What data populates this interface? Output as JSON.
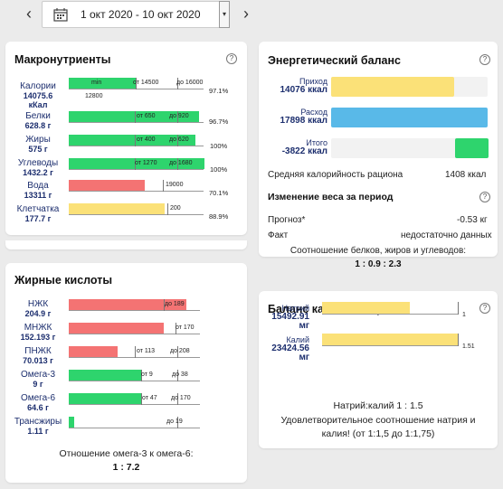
{
  "toolbar": {
    "prev_label": "‹",
    "next_label": "›",
    "date_range": "1 окт 2020 - 10 окт 2020",
    "dropdown_label": "▾"
  },
  "macro": {
    "title": "Макронутриенты",
    "rows": [
      {
        "name": "Калории",
        "value": "14075.6",
        "value2": "кКал",
        "min": "min",
        "from": "от 14500",
        "to": "до 16000",
        "pct": "97.1%",
        "below": "12800"
      },
      {
        "name": "Белки",
        "value": "628.8 г",
        "from": "от 650",
        "to": "до 920",
        "pct": "96.7%"
      },
      {
        "name": "Жиры",
        "value": "575 г",
        "from": "от 400",
        "to": "до 620",
        "pct": "100%"
      },
      {
        "name": "Углеводы",
        "value": "1432.2 г",
        "from": "от 1270",
        "to": "до 1680",
        "pct": "100%"
      },
      {
        "name": "Вода",
        "value": "13311 г",
        "to": "19000",
        "pct": "70.1%"
      },
      {
        "name": "Клетчатка",
        "value": "177.7 г",
        "to": "200",
        "pct": "88.9%"
      }
    ]
  },
  "fat": {
    "title": "Жирные кислоты",
    "rows": [
      {
        "name": "НЖК",
        "value": "204.9 г",
        "to": "до 189"
      },
      {
        "name": "МНЖК",
        "value": "152.193 г",
        "to": "от 170"
      },
      {
        "name": "ПНЖК",
        "value": "70.013 г",
        "from": "от 113",
        "to": "до 208"
      },
      {
        "name": "Омега-3",
        "value": "9 г",
        "from": "от 9",
        "to": "до 38"
      },
      {
        "name": "Омега-6",
        "value": "64.6 г",
        "from": "от 47",
        "to": "до 170"
      },
      {
        "name": "Трансжиры",
        "value": "1.11 г",
        "to": "до 19"
      }
    ],
    "ratio_label": "Отношение омега-3 к омега-6:",
    "ratio_value": "1 : 7.2"
  },
  "energy": {
    "title": "Энергетический баланс",
    "income_label": "Приход",
    "income_value": "14076 ккал",
    "expense_label": "Расход",
    "expense_value": "17898 ккал",
    "total_label": "Итого",
    "total_value": "-3822 ккал",
    "avg_label": "Средняя калорийность рациона",
    "avg_value": "1408 ккал",
    "weight_title": "Изменение веса за период",
    "forecast_label": "Прогноз*",
    "forecast_value": "-0.53 кг",
    "fact_label": "Факт",
    "fact_value": "недостаточно данных",
    "ratio_label": "Соотношение белков, жиров и углеводов:",
    "ratio_value": "1 : 0.9 : 2.3"
  },
  "potassium": {
    "title": "Баланс калия и натрия",
    "sodium_label": "Натрий",
    "sodium_value": "15492.91",
    "sodium_unit": "мг",
    "sodium_ratio": "1",
    "potassium_label": "Калий",
    "potassium_value": "23424.56",
    "potassium_unit": "мг",
    "potassium_ratio": "1.51",
    "ratio_line": "Натрий:калий 1 : 1.5",
    "status_line1": "Удовлетворительное соотношение натрия и",
    "status_line2": "калия! (от 1:1,5 до 1:1,75)"
  },
  "help_label": "?",
  "colors": {
    "green": "#2ed46d",
    "red": "#f47373",
    "yellow": "#fbe178",
    "blue": "#59b9e8",
    "label_blue": "#1c2e6e"
  }
}
